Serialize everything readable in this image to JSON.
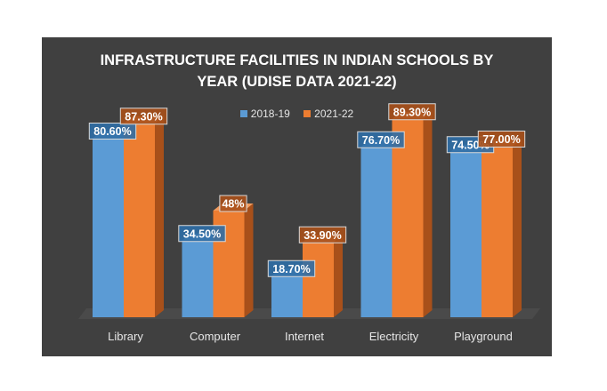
{
  "chart_data": {
    "type": "bar",
    "title_lines": [
      "INFRASTRUCTURE FACILITIES IN INDIAN SCHOOLS BY",
      "YEAR (UDISE DATA 2021-22)"
    ],
    "categories": [
      "Library",
      "Computer",
      "Internet",
      "Electricity",
      "Playground"
    ],
    "series": [
      {
        "name": "2018-19",
        "values": [
          80.6,
          34.5,
          18.7,
          76.7,
          74.5
        ],
        "labels": [
          "80.60%",
          "34.50%",
          "18.70%",
          "76.70%",
          "74.50%"
        ],
        "color": "#5b9bd5",
        "side_color": "#2f6ea6",
        "top_color": "#7aaedf"
      },
      {
        "name": "2021-22",
        "values": [
          87.3,
          48,
          33.9,
          89.3,
          77.0
        ],
        "labels": [
          "87.30%",
          "48%",
          "33.90%",
          "89.30%",
          "77.00%"
        ],
        "color": "#ed7d31",
        "side_color": "#a8501a",
        "top_color": "#f19b5e"
      }
    ],
    "ylim": [
      0,
      100
    ],
    "xlabel": "",
    "ylabel": "",
    "legend_position": "top",
    "grid": false,
    "style": "3d-clustered-column"
  },
  "colors": {
    "panel_background": "#404040",
    "floor": "#4a4a4a",
    "text": "#ffffff"
  }
}
